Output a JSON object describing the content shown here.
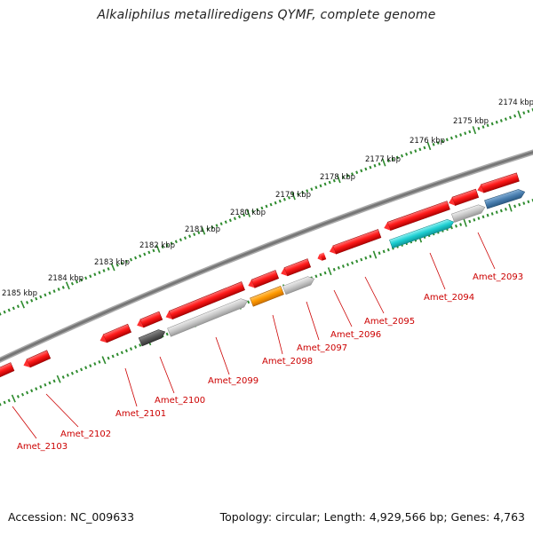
{
  "header": {
    "title": "Alkaliphilus metalliredigens QYMF, complete genome"
  },
  "footer": {
    "accession": "Accession: NC_009633",
    "summary": "Topology: circular; Length: 4,929,566 bp; Genes: 4,763"
  },
  "colors": {
    "backbone": "#7f7f7f",
    "ruler_ticks": "#2e8b2e",
    "gene_red": "#ff1a1a",
    "gene_gray": "#c8c8c8",
    "gene_dark_gray": "#5a5a5a",
    "gene_orange": "#ff9a00",
    "gene_cyan": "#1ecfd2",
    "gene_blue": "#4a7fb0",
    "label_red": "#cc0000"
  },
  "ruler": {
    "labels": [
      "2174 kbp",
      "2175 kbp",
      "2176 kbp",
      "2177 kbp",
      "2178 kbp",
      "2179 kbp",
      "2180 kbp",
      "2181 kbp",
      "2182 kbp",
      "2183 kbp",
      "2184 kbp",
      "2185 kbp"
    ]
  },
  "gene_labels": [
    "Amet_2093",
    "Amet_2094",
    "Amet_2095",
    "Amet_2096",
    "Amet_2097",
    "Amet_2098",
    "Amet_2099",
    "Amet_2100",
    "Amet_2101",
    "Amet_2102",
    "Amet_2103"
  ]
}
